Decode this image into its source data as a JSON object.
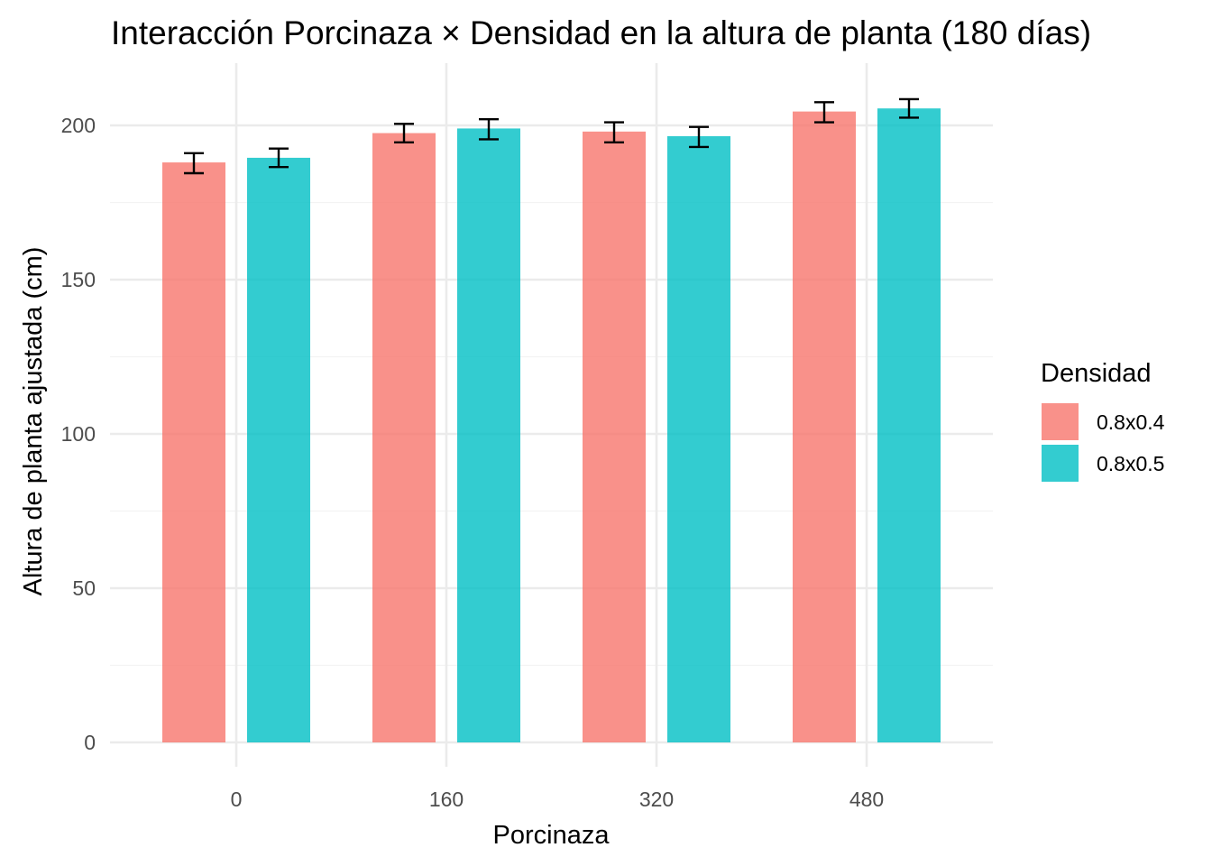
{
  "chart_data": {
    "type": "bar",
    "title": "Interacción Porcinaza × Densidad en la altura de planta (180 días)",
    "xlabel": "Porcinaza",
    "ylabel": "Altura de planta ajustada (cm)",
    "categories": [
      "0",
      "160",
      "320",
      "480"
    ],
    "ylim": [
      0,
      200
    ],
    "yticks": [
      0,
      50,
      100,
      150,
      200
    ],
    "grid": true,
    "legend": {
      "title": "Densidad",
      "placement": "right"
    },
    "series": [
      {
        "name": "0.8x0.4",
        "color": "#F8766D",
        "values": [
          188,
          197.5,
          198,
          204.5
        ],
        "error_low": [
          184.5,
          194.5,
          194.5,
          201
        ],
        "error_high": [
          191,
          200.5,
          201,
          207.5
        ]
      },
      {
        "name": "0.8x0.5",
        "color": "#00BFC4",
        "values": [
          189.5,
          199,
          196.5,
          205.5
        ],
        "error_low": [
          186.5,
          195.5,
          193,
          202.5
        ],
        "error_high": [
          192.5,
          202,
          199.5,
          208.5
        ]
      }
    ]
  }
}
